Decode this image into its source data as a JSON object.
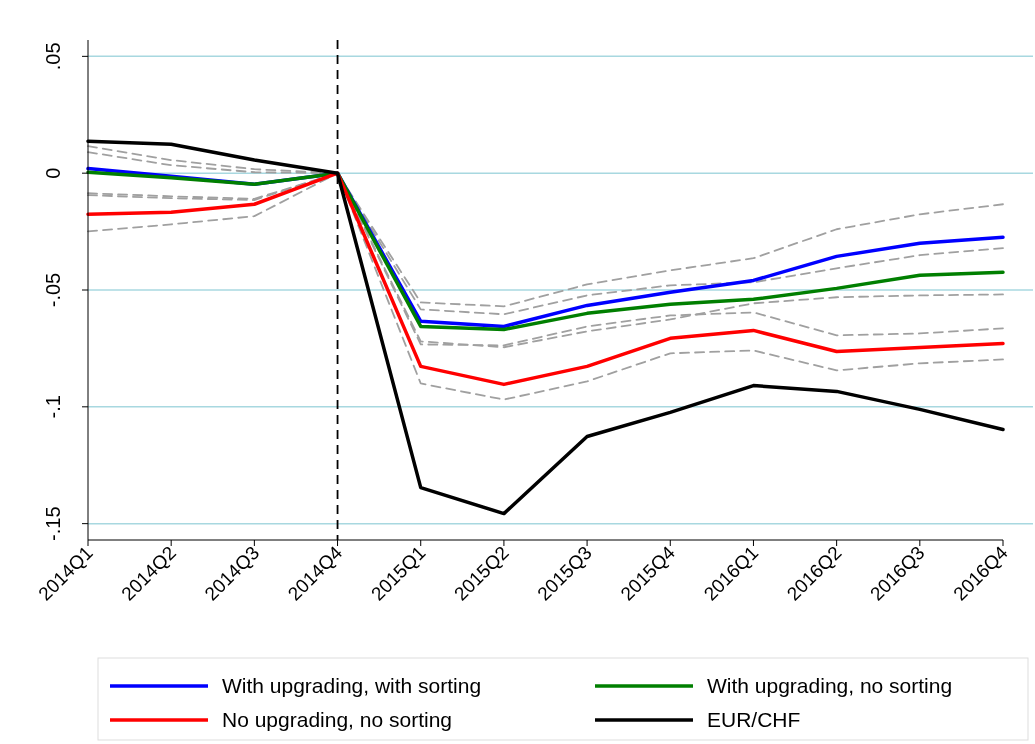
{
  "chart_data": {
    "type": "line",
    "categories": [
      "2014Q1",
      "2014Q2",
      "2014Q3",
      "2014Q4",
      "2015Q1",
      "2015Q2",
      "2015Q3",
      "2015Q4",
      "2016Q1",
      "2016Q2",
      "2016Q3",
      "2016Q4"
    ],
    "series": [
      {
        "color": "#a0a0a0",
        "line_style": "dashed",
        "values": [
          0.0116,
          0.0056,
          0.0017,
          0,
          -0.0553,
          -0.057,
          -0.0476,
          -0.0416,
          -0.0364,
          -0.024,
          -0.0176,
          -0.0133
        ]
      },
      {
        "color": "#a0a0a0",
        "line_style": "dashed",
        "values": [
          0.009,
          0.0034,
          0.0004,
          0,
          -0.0583,
          -0.0604,
          -0.0523,
          -0.048,
          -0.0467,
          -0.0407,
          -0.0351,
          -0.0321
        ]
      },
      {
        "color": "#a0a0a0",
        "line_style": "dashed",
        "values": [
          -0.0086,
          -0.0099,
          -0.011,
          0,
          -0.0733,
          -0.0737,
          -0.0656,
          -0.0609,
          -0.0596,
          -0.0694,
          -0.0686,
          -0.0664
        ]
      },
      {
        "color": "#a0a0a0",
        "line_style": "dashed",
        "values": [
          -0.0094,
          -0.0107,
          -0.0115,
          0,
          -0.072,
          -0.0745,
          -0.0677,
          -0.0626,
          -0.0557,
          -0.0531,
          -0.0523,
          -0.0519
        ]
      },
      {
        "color": "#a0a0a0",
        "line_style": "dashed",
        "values": [
          -0.0249,
          -0.0219,
          -0.0184,
          0,
          -0.09,
          -0.0969,
          -0.0891,
          -0.0771,
          -0.0759,
          -0.0844,
          -0.0814,
          -0.0797
        ]
      },
      {
        "name": "With upgrading, with sorting",
        "color": "#0000ff",
        "values": [
          0.002,
          -0.0013,
          -0.0047,
          0,
          -0.0634,
          -0.0656,
          -0.0566,
          -0.051,
          -0.0459,
          -0.0356,
          -0.03,
          -0.0274
        ]
      },
      {
        "name": "With upgrading, no sorting",
        "color": "#007f00",
        "values": [
          0.0004,
          -0.002,
          -0.0047,
          0,
          -0.0656,
          -0.0669,
          -0.06,
          -0.0561,
          -0.054,
          -0.0493,
          -0.0437,
          -0.0424
        ]
      },
      {
        "name": "No upgrading, no sorting",
        "color": "#ff0000",
        "values": [
          -0.0176,
          -0.0167,
          -0.0133,
          0,
          -0.0827,
          -0.0904,
          -0.0827,
          -0.0707,
          -0.0673,
          -0.0763,
          -0.0746,
          -0.0729
        ]
      },
      {
        "name": "EUR/CHF",
        "color": "#000000",
        "values": [
          0.0137,
          0.0124,
          0.0056,
          0,
          -0.1346,
          -0.1457,
          -0.1127,
          -0.1024,
          -0.0909,
          -0.0934,
          -0.1011,
          -0.1097
        ]
      }
    ],
    "ylim": [
      -0.157,
      0.057
    ],
    "yticks": [
      {
        "value": 0.05,
        "label": ".05"
      },
      {
        "value": 0,
        "label": "0"
      },
      {
        "value": -0.05,
        "label": "-.05"
      },
      {
        "value": -0.1,
        "label": "-.1"
      },
      {
        "value": -0.15,
        "label": "-.15"
      }
    ],
    "grid": "y",
    "legend": "bottom",
    "line_style": "solid",
    "ref_lines": [
      {
        "axis": "x",
        "value": "2014Q4",
        "color": "#000000",
        "line_style": "dashed"
      }
    ]
  }
}
